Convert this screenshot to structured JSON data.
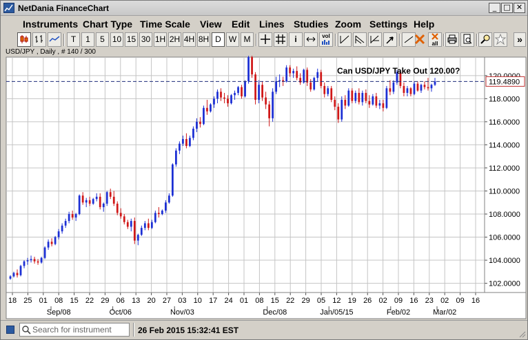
{
  "window": {
    "title": "NetDania FinanceChart",
    "minimize_label": "_",
    "maximize_label": "□",
    "close_label": "✕"
  },
  "menu": [
    "Instruments",
    "Chart Type",
    "Time Scale",
    "View",
    "Edit",
    "Lines",
    "Studies",
    "Zoom",
    "Settings",
    "Help"
  ],
  "toolbar": {
    "timescale_buttons": [
      "T",
      "1",
      "5",
      "10",
      "15",
      "30",
      "1H",
      "2H",
      "4H",
      "8H",
      "D",
      "W",
      "M"
    ],
    "active_timescale": "D",
    "info_label": "i",
    "vol_label": "vol",
    "more_label": "»",
    "icons": [
      "candlestick-chart-icon",
      "bar-chart-icon",
      "line-chart-icon",
      "crosshair-icon",
      "grid-icon",
      "info-icon",
      "pan-icon",
      "volume-icon",
      "trendline-icon",
      "parallel-lines-icon",
      "fibonacci-icon",
      "arrow-icon",
      "delete-line-icon",
      "delete-all-icon",
      "print-icon",
      "print-preview-icon",
      "zoom-icon",
      "highlight-icon"
    ],
    "delete_all_label": "all"
  },
  "instrument": {
    "label": "USD/JPY , Daily , # 140 / 300"
  },
  "chart_data": {
    "type": "candlestick",
    "title": "Can USD/JPY Take Out 120.00?",
    "instrument": "USD/JPY",
    "interval": "Daily",
    "ylim": [
      101.2,
      121.6
    ],
    "y_ticks": [
      "102.0000",
      "104.0000",
      "106.0000",
      "108.0000",
      "110.0000",
      "112.0000",
      "114.0000",
      "116.0000",
      "118.0000",
      "120.0000"
    ],
    "y_tick_values": [
      102,
      104,
      106,
      108,
      110,
      112,
      114,
      116,
      118,
      120
    ],
    "last_price": 119.489,
    "last_price_label": "119.4890",
    "x_day_labels": [
      "18",
      "25",
      "01",
      "08",
      "15",
      "22",
      "29",
      "06",
      "13",
      "20",
      "27",
      "03",
      "10",
      "17",
      "24",
      "01",
      "08",
      "15",
      "22",
      "29",
      "05",
      "12",
      "19",
      "26",
      "02",
      "09",
      "16",
      "23",
      "02",
      "09",
      "16"
    ],
    "x_month_labels": [
      "Sep/08",
      "Oct/06",
      "Nov/03",
      "Dec/08",
      "Jan/05/15",
      "Feb/02",
      "Mar/02"
    ],
    "x_month_label_slots": [
      3,
      7,
      11,
      17,
      21,
      25,
      28
    ],
    "grid": true,
    "colors": {
      "up": "#1c2fd4",
      "down": "#d01818",
      "grid": "#c4c4c4",
      "price_line": "#1c2a7a"
    },
    "candles": [
      [
        102.4,
        102.7,
        102.3,
        102.6
      ],
      [
        102.6,
        103.0,
        102.5,
        102.9
      ],
      [
        102.9,
        103.2,
        102.5,
        102.7
      ],
      [
        102.7,
        103.6,
        102.6,
        103.5
      ],
      [
        103.5,
        104.0,
        103.3,
        103.9
      ],
      [
        103.9,
        104.2,
        103.6,
        104.0
      ],
      [
        104.0,
        104.4,
        103.8,
        104.1
      ],
      [
        104.1,
        104.3,
        103.7,
        103.9
      ],
      [
        103.9,
        104.1,
        103.6,
        103.8
      ],
      [
        103.8,
        104.3,
        103.7,
        104.2
      ],
      [
        104.2,
        105.2,
        104.1,
        105.1
      ],
      [
        105.1,
        105.8,
        104.9,
        105.6
      ],
      [
        105.6,
        105.9,
        105.2,
        105.4
      ],
      [
        105.4,
        106.1,
        105.3,
        106.0
      ],
      [
        106.0,
        106.7,
        105.8,
        106.5
      ],
      [
        106.5,
        107.2,
        106.3,
        107.0
      ],
      [
        107.0,
        107.6,
        106.8,
        107.4
      ],
      [
        107.4,
        108.2,
        107.2,
        108.0
      ],
      [
        108.0,
        108.3,
        107.5,
        107.7
      ],
      [
        107.7,
        108.1,
        107.4,
        108.0
      ],
      [
        108.0,
        109.7,
        107.9,
        109.6
      ],
      [
        109.6,
        109.9,
        108.8,
        109.0
      ],
      [
        109.0,
        109.4,
        108.6,
        109.2
      ],
      [
        109.2,
        109.5,
        108.7,
        108.9
      ],
      [
        108.9,
        109.4,
        108.8,
        109.3
      ],
      [
        109.3,
        109.8,
        109.1,
        109.5
      ],
      [
        109.5,
        109.8,
        108.4,
        108.6
      ],
      [
        108.6,
        109.0,
        108.2,
        108.9
      ],
      [
        108.9,
        110.0,
        108.7,
        109.9
      ],
      [
        109.9,
        110.2,
        109.3,
        109.5
      ],
      [
        109.5,
        110.0,
        108.7,
        108.9
      ],
      [
        108.9,
        109.1,
        107.9,
        108.1
      ],
      [
        108.1,
        108.5,
        107.6,
        107.8
      ],
      [
        107.8,
        108.0,
        107.1,
        107.3
      ],
      [
        107.3,
        107.5,
        106.7,
        106.9
      ],
      [
        106.9,
        107.6,
        106.5,
        107.4
      ],
      [
        107.4,
        107.7,
        105.4,
        105.7
      ],
      [
        105.7,
        106.3,
        105.3,
        106.2
      ],
      [
        106.2,
        107.0,
        106.1,
        106.8
      ],
      [
        106.8,
        107.4,
        106.6,
        107.2
      ],
      [
        107.2,
        107.6,
        106.6,
        106.8
      ],
      [
        106.8,
        107.5,
        106.7,
        107.3
      ],
      [
        107.3,
        108.3,
        107.2,
        108.1
      ],
      [
        108.1,
        108.6,
        107.7,
        108.0
      ],
      [
        108.0,
        108.4,
        107.9,
        108.3
      ],
      [
        108.3,
        109.2,
        108.1,
        109.0
      ],
      [
        109.0,
        109.8,
        108.9,
        109.6
      ],
      [
        109.6,
        112.4,
        109.5,
        112.3
      ],
      [
        112.3,
        113.7,
        112.1,
        113.5
      ],
      [
        113.5,
        114.3,
        113.2,
        114.1
      ],
      [
        114.1,
        114.8,
        113.9,
        114.5
      ],
      [
        114.5,
        115.0,
        113.7,
        113.9
      ],
      [
        113.9,
        114.8,
        113.8,
        114.6
      ],
      [
        114.6,
        115.6,
        114.4,
        115.4
      ],
      [
        115.4,
        116.3,
        115.1,
        116.0
      ],
      [
        116.0,
        116.4,
        115.5,
        115.8
      ],
      [
        115.8,
        117.4,
        115.7,
        117.2
      ],
      [
        117.2,
        117.9,
        116.6,
        116.9
      ],
      [
        116.9,
        117.6,
        116.8,
        117.5
      ],
      [
        117.5,
        118.2,
        117.2,
        118.0
      ],
      [
        118.0,
        118.8,
        117.6,
        118.6
      ],
      [
        118.6,
        118.9,
        117.8,
        118.1
      ],
      [
        118.1,
        118.5,
        117.6,
        118.0
      ],
      [
        118.0,
        118.3,
        117.3,
        117.6
      ],
      [
        117.6,
        118.4,
        117.5,
        118.3
      ],
      [
        118.3,
        118.7,
        117.9,
        118.5
      ],
      [
        118.5,
        119.1,
        118.3,
        119.0
      ],
      [
        119.0,
        119.2,
        118.0,
        118.2
      ],
      [
        118.2,
        119.6,
        118.1,
        119.5
      ],
      [
        119.5,
        121.8,
        119.3,
        121.6
      ],
      [
        121.6,
        121.8,
        119.8,
        120.1
      ],
      [
        120.1,
        120.3,
        117.5,
        117.9
      ],
      [
        117.9,
        119.6,
        117.6,
        119.2
      ],
      [
        119.2,
        119.5,
        117.8,
        118.1
      ],
      [
        118.1,
        118.6,
        117.1,
        117.5
      ],
      [
        117.5,
        117.8,
        115.6,
        116.3
      ],
      [
        116.3,
        118.9,
        116.0,
        118.6
      ],
      [
        118.6,
        119.9,
        118.4,
        119.5
      ],
      [
        119.5,
        120.1,
        119.0,
        119.6
      ],
      [
        119.6,
        119.9,
        119.1,
        119.5
      ],
      [
        119.5,
        120.9,
        119.4,
        120.7
      ],
      [
        120.7,
        120.9,
        119.9,
        120.2
      ],
      [
        120.2,
        120.6,
        119.8,
        120.4
      ],
      [
        120.4,
        120.8,
        119.6,
        119.8
      ],
      [
        119.8,
        120.2,
        119.2,
        119.4
      ],
      [
        119.4,
        120.6,
        119.3,
        120.5
      ],
      [
        120.5,
        120.7,
        119.1,
        119.4
      ],
      [
        119.4,
        119.7,
        118.6,
        118.8
      ],
      [
        118.8,
        119.9,
        118.7,
        119.8
      ],
      [
        119.8,
        120.6,
        119.5,
        120.3
      ],
      [
        120.3,
        120.5,
        118.9,
        119.1
      ],
      [
        119.1,
        119.4,
        118.1,
        118.4
      ],
      [
        118.4,
        119.1,
        118.2,
        118.9
      ],
      [
        118.9,
        119.1,
        117.7,
        117.9
      ],
      [
        117.9,
        118.2,
        117.0,
        117.3
      ],
      [
        117.3,
        117.6,
        115.9,
        116.2
      ],
      [
        116.2,
        118.2,
        116.0,
        117.9
      ],
      [
        117.9,
        118.3,
        117.1,
        117.4
      ],
      [
        117.4,
        118.9,
        117.3,
        118.7
      ],
      [
        118.7,
        118.9,
        117.6,
        117.8
      ],
      [
        117.8,
        118.7,
        117.6,
        118.5
      ],
      [
        118.5,
        118.9,
        117.5,
        117.7
      ],
      [
        117.7,
        118.7,
        117.4,
        118.5
      ],
      [
        118.5,
        118.8,
        117.6,
        117.8
      ],
      [
        117.8,
        118.3,
        117.2,
        117.5
      ],
      [
        117.5,
        118.4,
        117.4,
        118.2
      ],
      [
        118.2,
        118.5,
        117.2,
        117.4
      ],
      [
        117.4,
        117.9,
        117.1,
        117.6
      ],
      [
        117.6,
        117.9,
        116.9,
        117.2
      ],
      [
        117.2,
        119.1,
        117.1,
        118.9
      ],
      [
        118.9,
        119.6,
        118.3,
        118.6
      ],
      [
        118.6,
        119.6,
        118.4,
        119.4
      ],
      [
        119.4,
        120.5,
        119.2,
        120.3
      ],
      [
        120.3,
        120.4,
        118.9,
        119.1
      ],
      [
        119.1,
        119.4,
        118.2,
        118.5
      ],
      [
        118.5,
        119.1,
        118.2,
        118.9
      ],
      [
        118.9,
        119.0,
        118.2,
        118.4
      ],
      [
        118.4,
        119.5,
        118.3,
        119.3
      ],
      [
        119.3,
        119.5,
        118.6,
        118.7
      ],
      [
        118.7,
        119.3,
        118.5,
        119.2
      ],
      [
        119.2,
        119.5,
        118.8,
        119.0
      ],
      [
        119.0,
        119.8,
        118.7,
        118.9
      ],
      [
        118.9,
        119.3,
        118.6,
        119.2
      ],
      [
        119.2,
        119.8,
        119.1,
        119.5
      ]
    ]
  },
  "status": {
    "search_placeholder": "Search for instrument",
    "timestamp": "26 Feb 2015 15:32:41 EST"
  }
}
